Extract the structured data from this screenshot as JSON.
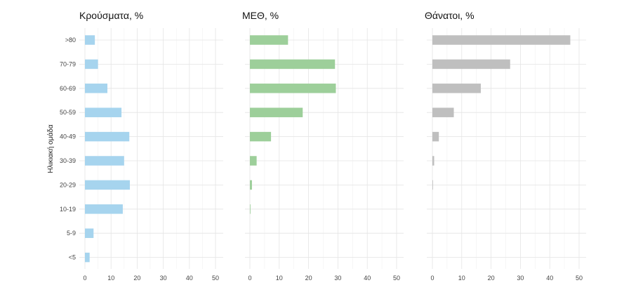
{
  "chart_data": {
    "type": "bar",
    "orientation": "horizontal",
    "ylabel": "Ηλικιακή ομάδα",
    "categories": [
      ">80",
      "70-79",
      "60-69",
      "50-59",
      "40-49",
      "30-39",
      "20-29",
      "10-19",
      "5-9",
      "<5"
    ],
    "xlim": [
      0,
      50
    ],
    "xticks": [
      0,
      10,
      20,
      30,
      40,
      50
    ],
    "grid": true,
    "panels": [
      {
        "title": "Κρούσματα, %",
        "color": "#a6d4ee",
        "values": [
          3.8,
          5.0,
          8.6,
          14.0,
          17.0,
          15.0,
          17.2,
          14.5,
          3.3,
          1.8
        ]
      },
      {
        "title": "ΜΕΘ, %",
        "color": "#9dcf9a",
        "values": [
          13.0,
          29.0,
          29.3,
          18.0,
          7.2,
          2.3,
          0.7,
          0.2,
          0.0,
          0.0
        ]
      },
      {
        "title": "Θάνατοι, %",
        "color": "#bfbfbf",
        "values": [
          47.0,
          26.5,
          16.5,
          7.3,
          2.2,
          0.6,
          0.2,
          0.0,
          0.0,
          0.0
        ]
      }
    ]
  }
}
